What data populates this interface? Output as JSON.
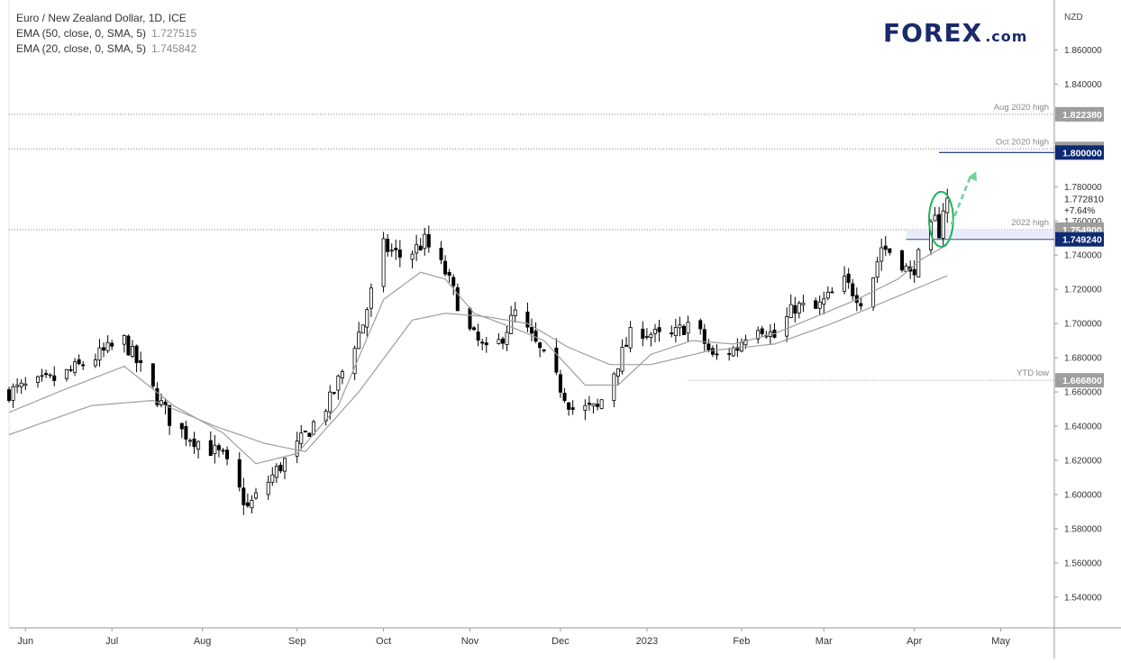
{
  "legend": {
    "title": "Euro / New Zealand Dollar, 1D, ICE",
    "ema50_label": "EMA (50, close, 0, SMA, 5)",
    "ema50_value": "1.727515",
    "ema20_label": "EMA (20, close, 0, SMA, 5)",
    "ema20_value": "1.745842"
  },
  "logo": {
    "main": "FOREX",
    "suffix": ".com"
  },
  "colors": {
    "candle": "#000000",
    "ma_line": "#9e9e9e",
    "accent_blue": "#0d2a73",
    "highlight_green": "#1bb45a",
    "gray_tag": "#9e9e9e",
    "dark_tag": "#3a3a3a"
  },
  "chart_data": {
    "type": "candlestick",
    "currency_label": "NZD",
    "ylim": [
      1.522,
      1.885
    ],
    "yticks": [
      "1.860000",
      "1.840000",
      "1.820000",
      "1.800000",
      "1.780000",
      "1.760000",
      "1.740000",
      "1.720000",
      "1.700000",
      "1.680000",
      "1.660000",
      "1.640000",
      "1.620000",
      "1.600000",
      "1.580000",
      "1.560000",
      "1.540000"
    ],
    "ytick_values": [
      1.86,
      1.84,
      1.82,
      1.8,
      1.78,
      1.76,
      1.74,
      1.72,
      1.7,
      1.68,
      1.66,
      1.64,
      1.62,
      1.6,
      1.58,
      1.56,
      1.54
    ],
    "month_labels": [
      {
        "label": "Jun",
        "day": 4
      },
      {
        "label": "Jul",
        "day": 25
      },
      {
        "label": "Aug",
        "day": 47
      },
      {
        "label": "Sep",
        "day": 70
      },
      {
        "label": "Oct",
        "day": 91
      },
      {
        "label": "Nov",
        "day": 112
      },
      {
        "label": "Dec",
        "day": 134
      },
      {
        "label": "2023",
        "day": 155
      },
      {
        "label": "Feb",
        "day": 178
      },
      {
        "label": "Mar",
        "day": 198
      },
      {
        "label": "Apr",
        "day": 220
      },
      {
        "label": "May",
        "day": 241
      }
    ],
    "key_points": [
      [
        0,
        1.66
      ],
      [
        12,
        1.668
      ],
      [
        28,
        1.69
      ],
      [
        40,
        1.64
      ],
      [
        52,
        1.622
      ],
      [
        58,
        1.592
      ],
      [
        65,
        1.614
      ],
      [
        70,
        1.628
      ],
      [
        78,
        1.655
      ],
      [
        86,
        1.7
      ],
      [
        91,
        1.745
      ],
      [
        96,
        1.738
      ],
      [
        101,
        1.748
      ],
      [
        106,
        1.73
      ],
      [
        112,
        1.695
      ],
      [
        117,
        1.68
      ],
      [
        123,
        1.706
      ],
      [
        130,
        1.68
      ],
      [
        137,
        1.65
      ],
      [
        143,
        1.65
      ],
      [
        147,
        1.672
      ],
      [
        152,
        1.698
      ],
      [
        160,
        1.69
      ],
      [
        166,
        1.702
      ],
      [
        171,
        1.68
      ],
      [
        177,
        1.686
      ],
      [
        181,
        1.702
      ],
      [
        186,
        1.692
      ],
      [
        191,
        1.71
      ],
      [
        196,
        1.708
      ],
      [
        203,
        1.724
      ],
      [
        208,
        1.712
      ],
      [
        212,
        1.745
      ],
      [
        216,
        1.74
      ],
      [
        219,
        1.728
      ],
      [
        222,
        1.744
      ],
      [
        225,
        1.76
      ],
      [
        226,
        1.754
      ],
      [
        227,
        1.768
      ],
      [
        228,
        1.772
      ]
    ],
    "ema20_key_points": [
      [
        0,
        1.648
      ],
      [
        12,
        1.66
      ],
      [
        28,
        1.675
      ],
      [
        40,
        1.652
      ],
      [
        52,
        1.636
      ],
      [
        60,
        1.618
      ],
      [
        70,
        1.624
      ],
      [
        80,
        1.652
      ],
      [
        91,
        1.714
      ],
      [
        100,
        1.73
      ],
      [
        106,
        1.726
      ],
      [
        113,
        1.706
      ],
      [
        122,
        1.698
      ],
      [
        130,
        1.69
      ],
      [
        140,
        1.664
      ],
      [
        148,
        1.664
      ],
      [
        156,
        1.682
      ],
      [
        166,
        1.69
      ],
      [
        176,
        1.688
      ],
      [
        186,
        1.694
      ],
      [
        196,
        1.704
      ],
      [
        206,
        1.714
      ],
      [
        216,
        1.726
      ],
      [
        222,
        1.738
      ],
      [
        228,
        1.746
      ]
    ],
    "ema50_key_points": [
      [
        0,
        1.635
      ],
      [
        20,
        1.652
      ],
      [
        35,
        1.655
      ],
      [
        50,
        1.64
      ],
      [
        62,
        1.63
      ],
      [
        72,
        1.625
      ],
      [
        85,
        1.66
      ],
      [
        98,
        1.702
      ],
      [
        106,
        1.706
      ],
      [
        116,
        1.704
      ],
      [
        126,
        1.7
      ],
      [
        136,
        1.686
      ],
      [
        146,
        1.676
      ],
      [
        156,
        1.676
      ],
      [
        170,
        1.684
      ],
      [
        186,
        1.688
      ],
      [
        200,
        1.7
      ],
      [
        212,
        1.712
      ],
      [
        228,
        1.728
      ]
    ],
    "levels": [
      {
        "label": "Aug 2020 high",
        "value": 1.82238,
        "tag": "1.822380",
        "style": "dotted",
        "tag_color": "gray"
      },
      {
        "label": "Oct 2020 high",
        "value": 1.80212,
        "tag": "1.802120",
        "style": "dotted",
        "tag_color": "gray"
      },
      {
        "label": "",
        "value": 1.8,
        "tag": "1.800000",
        "style": "solid-blue",
        "tag_color": "blue",
        "start_day": 226
      },
      {
        "label": "2022 high",
        "value": 1.7549,
        "tag": "1.754900",
        "style": "dotted",
        "tag_color": "gray"
      },
      {
        "label": "",
        "value": 1.74924,
        "tag": "1.749240",
        "style": "solid-blue",
        "tag_color": "blue",
        "start_day": 218
      },
      {
        "label": "YTD low",
        "value": 1.6668,
        "tag": "1.666800",
        "style": "dotted",
        "tag_color": "gray",
        "start_day": 165
      }
    ],
    "last_price": {
      "tag": "1.772810",
      "change": "+7.64%",
      "value": 1.77281
    },
    "annotations": [
      {
        "type": "ellipse",
        "day_from": 224,
        "day_to": 229,
        "low": 1.746,
        "high": 1.776,
        "color": "green"
      },
      {
        "type": "arrow",
        "from_day": 229,
        "from_value": 1.758,
        "to_day": 235,
        "to_value": 1.789,
        "color": "green",
        "dashed": true
      }
    ]
  }
}
